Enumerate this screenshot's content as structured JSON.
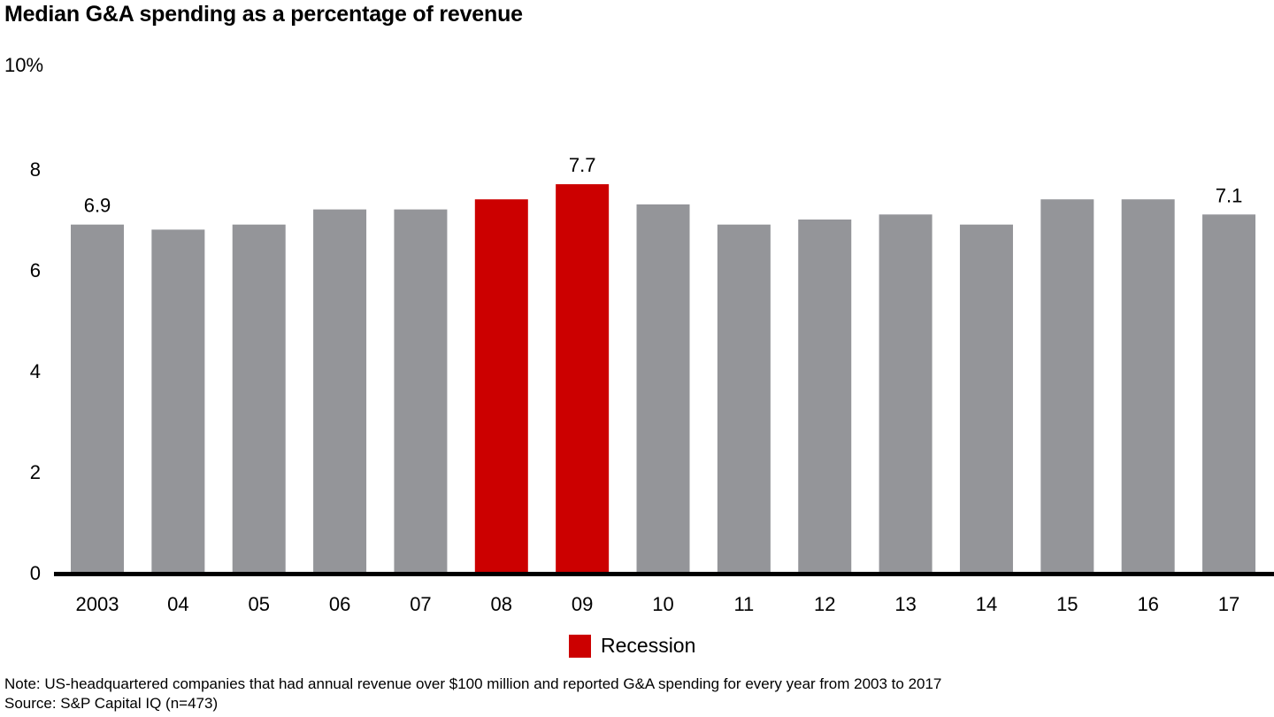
{
  "chart_data": {
    "type": "bar",
    "title": "Median G&A spending as a percentage of revenue",
    "ylabel": "10%",
    "xlabel": "",
    "ylim": [
      0,
      10
    ],
    "yticks": [
      {
        "value": 0,
        "label": "0"
      },
      {
        "value": 2,
        "label": "2"
      },
      {
        "value": 4,
        "label": "4"
      },
      {
        "value": 6,
        "label": "6"
      },
      {
        "value": 8,
        "label": "8"
      },
      {
        "value": 10,
        "label": "10%"
      }
    ],
    "grid": false,
    "categories": [
      "2003",
      "04",
      "05",
      "06",
      "07",
      "08",
      "09",
      "10",
      "11",
      "12",
      "13",
      "14",
      "15",
      "16",
      "17"
    ],
    "values": [
      6.9,
      6.8,
      6.9,
      7.2,
      7.2,
      7.4,
      7.7,
      7.3,
      6.9,
      7.0,
      7.1,
      6.9,
      7.4,
      7.4,
      7.1
    ],
    "highlight": [
      false,
      false,
      false,
      false,
      false,
      true,
      true,
      false,
      false,
      false,
      false,
      false,
      false,
      false,
      false
    ],
    "data_labels": [
      {
        "index": 0,
        "text": "6.9"
      },
      {
        "index": 6,
        "text": "7.7"
      },
      {
        "index": 14,
        "text": "7.1"
      }
    ],
    "colors": {
      "default": "#949599",
      "recession": "#CC0000",
      "axis": "#000000"
    },
    "legend": {
      "position": "bottom-center",
      "entries": [
        {
          "label": "Recession",
          "color": "#CC0000"
        }
      ]
    }
  },
  "notes": {
    "note": "Note: US-headquartered companies that had annual revenue over $100 million and reported G&A spending for every year from 2003 to 2017",
    "source": "Source: S&P Capital IQ (n=473)"
  }
}
